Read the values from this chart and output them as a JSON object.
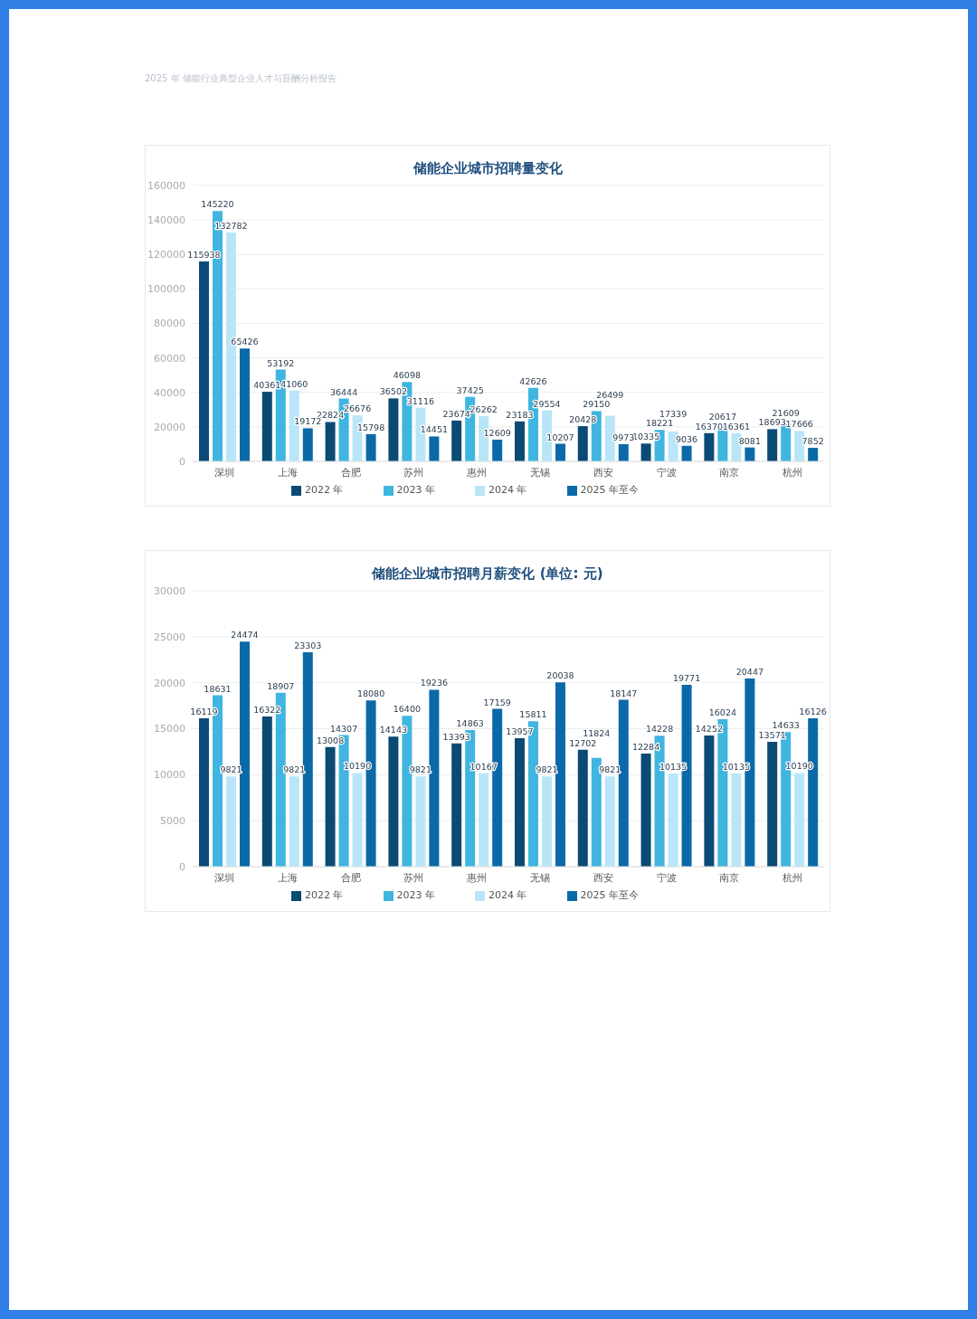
{
  "chart_data": [
    {
      "type": "bar",
      "title": "储能企业城市招聘量变化",
      "annotations": [
        "2025 年 储能行业典型企业人才与薪酬分析报告"
      ],
      "categories": [
        "深圳",
        "上海",
        "合肥",
        "苏州",
        "惠州",
        "无锡",
        "西安",
        "宁波",
        "南京",
        "杭州"
      ],
      "series": [
        {
          "name": "2022 年",
          "color": "#0b4a75",
          "values": [
            115938,
            40361,
            22824,
            36502,
            23674,
            23183,
            20428,
            10335,
            16370,
            18693
          ]
        },
        {
          "name": "2023 年",
          "color": "#3fb5e0",
          "values": [
            145220,
            53192,
            36444,
            46098,
            37425,
            42626,
            29150,
            18221,
            20617,
            21609
          ]
        },
        {
          "name": "2024 年",
          "color": "#b8e6f8",
          "values": [
            132782,
            41060,
            26676,
            31116,
            26262,
            29554,
            26499,
            17339,
            16361,
            17666
          ]
        },
        {
          "name": "2025 年至今",
          "color": "#0a6aa8",
          "values": [
            65426,
            19172,
            15798,
            14451,
            12609,
            10207,
            9973,
            9036,
            8081,
            7852
          ]
        }
      ],
      "ylim": [
        0,
        160000
      ],
      "yticks": [
        0,
        20000,
        40000,
        60000,
        80000,
        100000,
        120000,
        140000,
        160000
      ],
      "grid": "y",
      "legend": "bottom",
      "data_labels": true
    },
    {
      "type": "bar",
      "title": "储能企业城市招聘月薪变化 (单位: 元)",
      "categories": [
        "深圳",
        "上海",
        "合肥",
        "苏州",
        "惠州",
        "无锡",
        "西安",
        "宁波",
        "南京",
        "杭州"
      ],
      "series": [
        {
          "name": "2022 年",
          "color": "#0b4a75",
          "values": [
            16119,
            16322,
            13008,
            14143,
            13393,
            13957,
            12702,
            12284,
            14252,
            13571
          ]
        },
        {
          "name": "2023 年",
          "color": "#3fb5e0",
          "values": [
            18631,
            18907,
            14307,
            16400,
            14863,
            15811,
            11824,
            14228,
            16024,
            14633
          ]
        },
        {
          "name": "2024 年",
          "color": "#b8e6f8",
          "values": [
            9821,
            9821,
            10190,
            9821,
            10167,
            9821,
            9821,
            10135,
            10135,
            10190
          ]
        },
        {
          "name": "2025 年至今",
          "color": "#0a6aa8",
          "values": [
            24474,
            23303,
            18080,
            19236,
            17159,
            20038,
            18147,
            19771,
            20447,
            16126
          ]
        }
      ],
      "ylim": [
        0,
        30000
      ],
      "yticks": [
        0,
        5000,
        10000,
        15000,
        20000,
        25000,
        30000
      ],
      "grid": "y",
      "legend": "bottom",
      "data_labels": true
    }
  ]
}
